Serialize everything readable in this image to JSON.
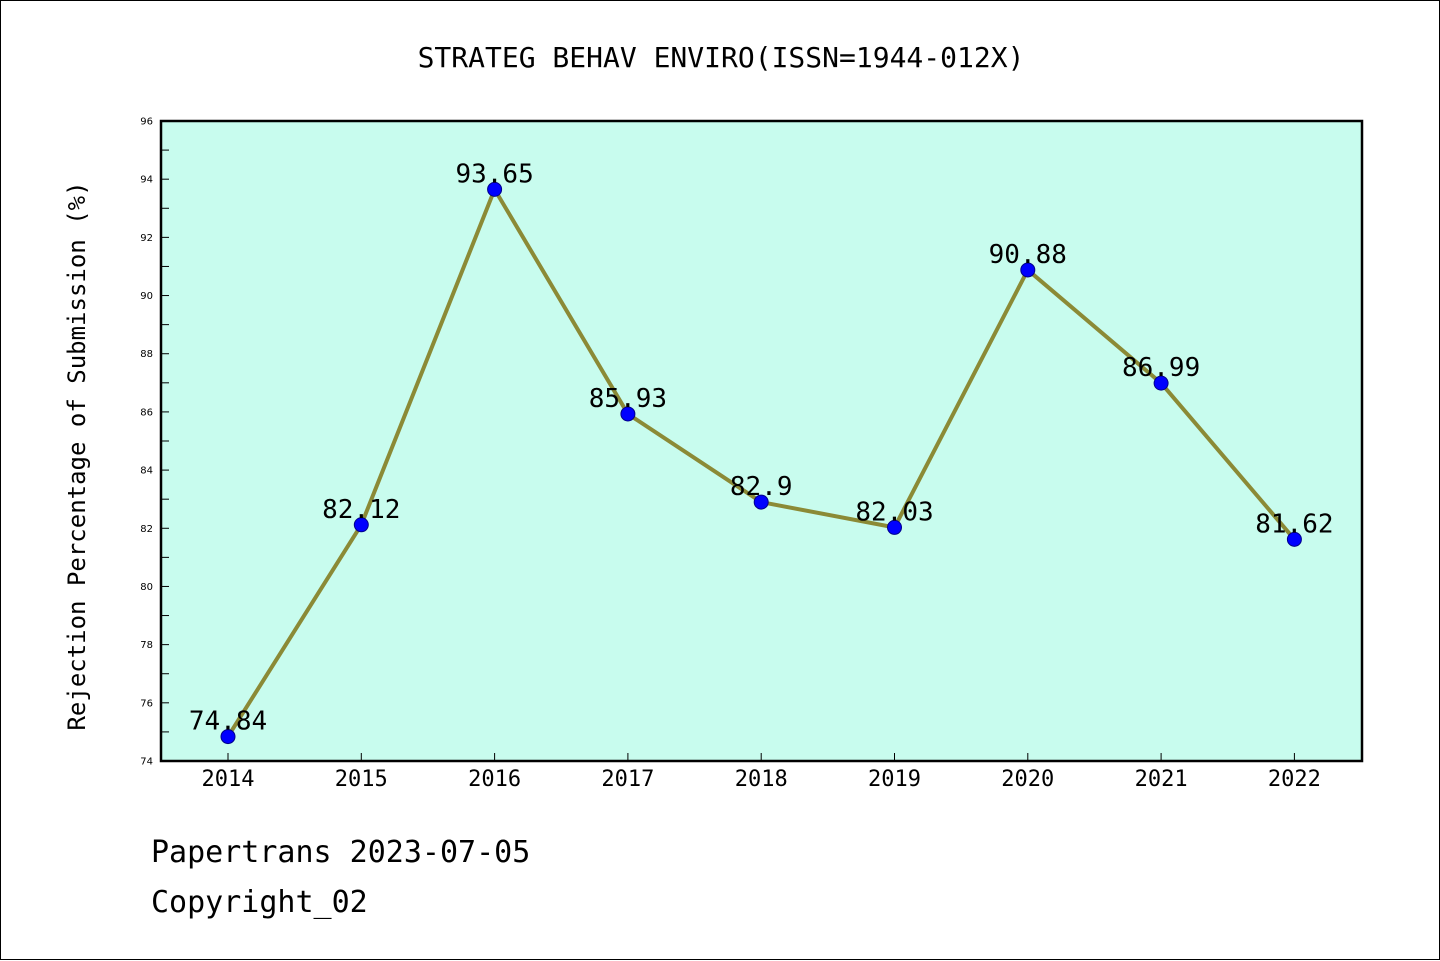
{
  "chart_data": {
    "type": "line",
    "title": "STRATEG BEHAV ENVIRO(ISSN=1944-012X)",
    "xlabel": "",
    "ylabel": "Rejection Percentage of Submission (%)",
    "categories": [
      "2014",
      "2015",
      "2016",
      "2017",
      "2018",
      "2019",
      "2020",
      "2021",
      "2022"
    ],
    "series": [
      {
        "values": [
          74.84,
          82.12,
          93.65,
          85.93,
          82.9,
          82.03,
          90.88,
          86.99,
          81.62
        ],
        "data_labels": [
          "74.84",
          "82.12",
          "93.65",
          "85.93",
          "82.9",
          "82.03",
          "90.88",
          "86.99",
          "81.62"
        ]
      }
    ],
    "ylim": [
      74,
      96
    ],
    "y_major_ticks": [
      74,
      76,
      78,
      80,
      82,
      84,
      86,
      88,
      90,
      92,
      94,
      96
    ],
    "grid": false,
    "colors": {
      "plot_background": "#c8fcee",
      "line": "#8b8a36",
      "marker": "#0000ff"
    }
  },
  "footer": {
    "line1": "Papertrans 2023-07-05",
    "line2": "Copyright_02"
  }
}
